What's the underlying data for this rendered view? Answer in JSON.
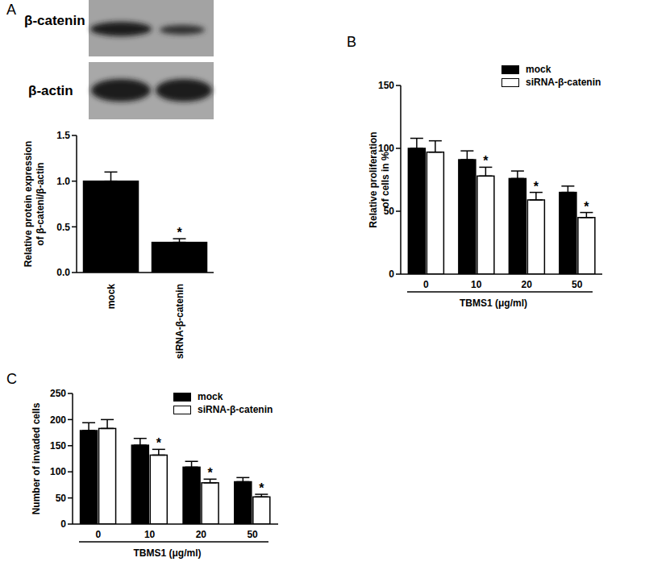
{
  "chart_data": [
    {
      "panel": "A",
      "type": "bar",
      "blot_labels": [
        "β-catenin",
        "β-actin"
      ],
      "categories": [
        "mock",
        "siRNA-β-catenin"
      ],
      "values": [
        1.0,
        0.33
      ],
      "errors": [
        0.1,
        0.04
      ],
      "annotations": [
        null,
        "*"
      ],
      "color": "#000000",
      "ylabel": [
        "Relative protein expression",
        "of β-cateni/β-actin"
      ],
      "ylim": [
        0,
        1.5
      ],
      "yticks": [
        {
          "value": 0,
          "label": "0.0"
        },
        {
          "value": 0.5,
          "label": "0.5"
        },
        {
          "value": 1,
          "label": "1.0"
        },
        {
          "value": 1.5,
          "label": "1.5"
        }
      ]
    },
    {
      "panel": "B",
      "type": "bar",
      "categories": [
        "0",
        "10",
        "20",
        "50"
      ],
      "xlabel": "TBMS1 (μg/ml)",
      "ylabel": [
        "Relative proliferation",
        "of cells in %"
      ],
      "ylim": [
        0,
        150
      ],
      "yticks": [
        0,
        50,
        100,
        150
      ],
      "legend": "upper right",
      "series": [
        {
          "name": "mock",
          "color": "#000000",
          "values": [
            100,
            91,
            76,
            65
          ],
          "errors": [
            8,
            7,
            6,
            5
          ]
        },
        {
          "name": "siRNA-β-catenin",
          "color": "#ffffff",
          "values": [
            97,
            78,
            59,
            45
          ],
          "errors": [
            9,
            7,
            6,
            4
          ],
          "annotations": [
            null,
            "*",
            "*",
            "*"
          ]
        }
      ]
    },
    {
      "panel": "C",
      "type": "bar",
      "categories": [
        "0",
        "10",
        "20",
        "50"
      ],
      "xlabel": "TBMS1  (μg/ml)",
      "ylabel": [
        "Number of invaded cells"
      ],
      "ylim": [
        0,
        250
      ],
      "yticks": [
        0,
        50,
        100,
        150,
        200,
        250
      ],
      "legend": "upper right",
      "series": [
        {
          "name": "mock",
          "color": "#000000",
          "values": [
            179,
            151,
            109,
            81
          ],
          "errors": [
            15,
            13,
            11,
            8
          ]
        },
        {
          "name": "siRNA-β-catenin",
          "color": "#ffffff",
          "values": [
            183,
            132,
            79,
            52
          ],
          "errors": [
            17,
            11,
            7,
            5
          ],
          "annotations": [
            null,
            "*",
            "*",
            "*"
          ]
        }
      ]
    }
  ]
}
